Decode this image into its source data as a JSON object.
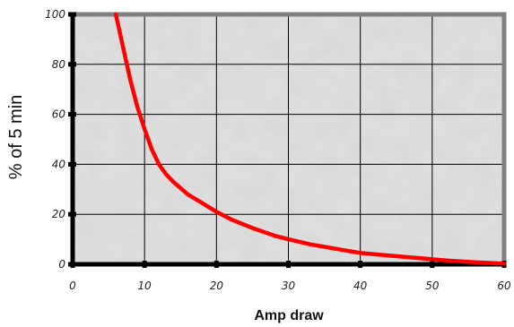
{
  "chart_data": {
    "type": "line",
    "title": "",
    "xlabel": "Amp draw",
    "ylabel": "% of 5 min",
    "xlim": [
      0,
      60
    ],
    "ylim": [
      0,
      100
    ],
    "xticks": [
      0,
      10,
      20,
      30,
      40,
      50,
      60
    ],
    "yticks": [
      0,
      20,
      40,
      60,
      80,
      100
    ],
    "x_tick_labels": [
      "0",
      "10",
      "20",
      "30",
      "40",
      "50",
      "60"
    ],
    "y_tick_labels": [
      "0",
      "20",
      "40",
      "60",
      "80",
      "100"
    ],
    "grid": true,
    "legend": "none",
    "colors": {
      "series": "#ff0000",
      "plot_border": "#808080",
      "axis": "#000000",
      "grid": "#000000",
      "plot_background": "#d9d9d9"
    },
    "series": [
      {
        "x": [
          6,
          7,
          8,
          9,
          10,
          11,
          12,
          13,
          14,
          16,
          18,
          20,
          22,
          25,
          28,
          30,
          33,
          36,
          40,
          44,
          48,
          52,
          56,
          60
        ],
        "y": [
          100,
          87,
          74,
          63,
          54,
          46,
          40,
          36,
          33,
          28,
          24.5,
          21,
          18,
          14.5,
          11.5,
          10,
          8,
          6.5,
          4.5,
          3.5,
          2.5,
          1.5,
          0.8,
          0.3
        ]
      }
    ]
  }
}
